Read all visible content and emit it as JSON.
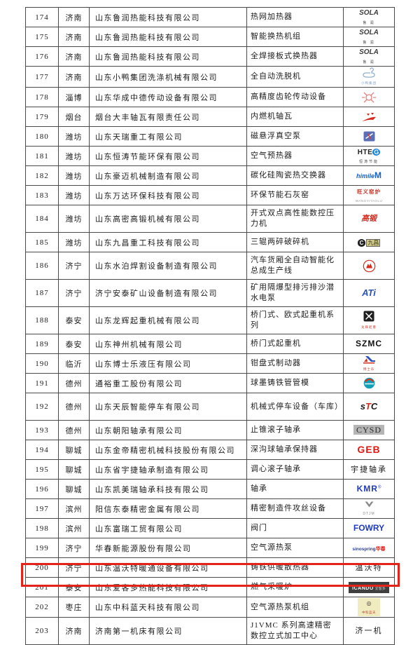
{
  "page": {
    "background": "#ffffff"
  },
  "table": {
    "highlight_color": "#e3231a",
    "highlighted_row_no": "200",
    "rows": [
      {
        "no": "174",
        "city": "济南",
        "company": "山东鲁润热能科技有限公司",
        "product": "热网加热器",
        "h": 1,
        "highlight": false,
        "logo": {
          "lines": [
            [
              {
                "t": "SOLA",
                "c": "sola"
              }
            ],
            [
              {
                "t": "鲁 润",
                "c": "subdark"
              }
            ]
          ]
        }
      },
      {
        "no": "175",
        "city": "济南",
        "company": "山东鲁润热能科技有限公司",
        "product": "智能换热机组",
        "h": 1,
        "highlight": false,
        "logo": {
          "lines": [
            [
              {
                "t": "SOLA",
                "c": "sola"
              }
            ],
            [
              {
                "t": "鲁 润",
                "c": "subdark"
              }
            ]
          ]
        }
      },
      {
        "no": "176",
        "city": "济南",
        "company": "山东鲁润热能科技有限公司",
        "product": "全焊接板式换热器",
        "h": 1,
        "highlight": false,
        "logo": {
          "lines": [
            [
              {
                "t": "SOLA",
                "c": "sola"
              }
            ],
            [
              {
                "t": "鲁 润",
                "c": "subdark"
              }
            ]
          ]
        }
      },
      {
        "no": "177",
        "city": "济南",
        "company": "山东小鸭集团洗涤机械有限公司",
        "product": "全自动洗脱机",
        "h": 1,
        "highlight": false,
        "logo": {
          "icon": "duck-icon",
          "lines": [
            [
              {
                "t": "小鸭集团",
                "c": "subblue"
              }
            ]
          ]
        }
      },
      {
        "no": "178",
        "city": "淄博",
        "company": "山东华成中德传动设备有限公司",
        "product": "高精度齿轮传动设备",
        "h": 1,
        "highlight": false,
        "logo": {
          "icon": "flower-emblem-icon",
          "lines": []
        }
      },
      {
        "no": "179",
        "city": "烟台",
        "company": "烟台大丰轴瓦有限责任公司",
        "product": "内燃机轴瓦",
        "h": 1,
        "highlight": false,
        "logo": {
          "icon": "red-swoosh-icon",
          "lines": []
        }
      },
      {
        "no": "180",
        "city": "潍坊",
        "company": "山东天瑞重工有限公司",
        "product": "磁悬浮真空泵",
        "h": 1,
        "highlight": false,
        "logo": {
          "icon": "blue-square-icon",
          "lines": []
        }
      },
      {
        "no": "181",
        "city": "潍坊",
        "company": "山东恒涛节能环保有限公司",
        "product": "空气预热器",
        "h": 1,
        "highlight": false,
        "logo": {
          "lines": [
            [
              {
                "t": "HTE",
                "c": "hteg-text"
              },
              {
                "t": "G",
                "c": "hteg-g"
              }
            ],
            [
              {
                "t": "恒涛节能",
                "c": "subdark"
              }
            ]
          ]
        }
      },
      {
        "no": "182",
        "city": "潍坊",
        "company": "山东豪迈机械制造有限公司",
        "product": "碳化硅陶瓷热交换器",
        "h": 1,
        "highlight": false,
        "logo": {
          "lines": [
            [
              {
                "t": "himile",
                "c": "himile"
              },
              {
                "t": "M",
                "c": "himile-m"
              }
            ]
          ]
        }
      },
      {
        "no": "183",
        "city": "潍坊",
        "company": "山东万达环保科技有限公司",
        "product": "环保节能石灰窑",
        "h": 1,
        "highlight": false,
        "logo": {
          "lines": [
            [
              {
                "t": "旺义窑炉",
                "c": "wangyi"
              }
            ],
            [
              {
                "t": "WANGYIYAOLU",
                "c": "subgray"
              }
            ]
          ]
        }
      },
      {
        "no": "184",
        "city": "潍坊",
        "company": "山东高密高锻机械有限公司",
        "product": "开式双点高性能数控压力机",
        "h": 2,
        "highlight": false,
        "logo": {
          "lines": [
            [
              {
                "t": "高锻",
                "c": "gaoduan"
              }
            ]
          ]
        }
      },
      {
        "no": "185",
        "city": "潍坊",
        "company": "山东九昌重工科技有限公司",
        "product": "三辊两碎破碎机",
        "h": 1,
        "highlight": false,
        "logo": {
          "lines": [
            [
              {
                "t": "C",
                "c": "jc-c"
              },
              {
                "t": "九昌",
                "c": "jc-box"
              }
            ]
          ]
        }
      },
      {
        "no": "186",
        "city": "济宁",
        "company": "山东水泊焊割设备制造有限公司",
        "product": "汽车货厢全自动智能化总成生产线",
        "h": 2,
        "highlight": false,
        "logo": {
          "icon": "red-ring-mountain-icon",
          "lines": []
        }
      },
      {
        "no": "187",
        "city": "济宁",
        "company": "济宁安泰矿山设备制造有限公司",
        "product": "矿用隔爆型排污排沙潜水电泵",
        "h": 2,
        "highlight": false,
        "logo": {
          "lines": [
            [
              {
                "t": "ATi",
                "c": "ati"
              }
            ]
          ]
        }
      },
      {
        "no": "188",
        "city": "泰安",
        "company": "山东龙辉起重机械有限公司",
        "product": "桥门式、欧式起重机系列",
        "h": 2,
        "highlight": false,
        "logo": {
          "icon": "black-square-cross-icon",
          "lines": [
            [
              {
                "t": "龙辉起重",
                "c": "subred"
              }
            ]
          ]
        }
      },
      {
        "no": "189",
        "city": "泰安",
        "company": "山东神州机械有限公司",
        "product": "桥门式起重机",
        "h": 1,
        "highlight": false,
        "logo": {
          "lines": [
            [
              {
                "t": "SZMC",
                "c": "szmc"
              }
            ]
          ]
        }
      },
      {
        "no": "190",
        "city": "临沂",
        "company": "山东博士乐液压有限公司",
        "product": "钳盘式制动器",
        "h": 1,
        "highlight": false,
        "logo": {
          "icon": "boshile-swoosh-icon",
          "lines": [
            [
              {
                "t": "博士乐",
                "c": "subred"
              }
            ]
          ]
        }
      },
      {
        "no": "191",
        "city": "德州",
        "company": "通裕重工股份有限公司",
        "product": "球墨铸铁管管模",
        "h": 1,
        "highlight": false,
        "logo": {
          "icon": "tongyu-globe-icon",
          "lines": []
        }
      },
      {
        "no": "192",
        "city": "德州",
        "company": "山东天辰智能停车有限公司",
        "product": "机械式停车设备（车库）",
        "h": 2,
        "highlight": false,
        "logo": {
          "lines": [
            [
              {
                "t": "s",
                "c": "stc-s"
              },
              {
                "t": "T",
                "c": "stc-t"
              },
              {
                "t": "C",
                "c": "stc-s"
              }
            ]
          ]
        }
      },
      {
        "no": "193",
        "city": "德州",
        "company": "山东朝阳轴承有限公司",
        "product": "止锥滚子轴承",
        "h": 1,
        "highlight": false,
        "logo": {
          "lines": [
            [
              {
                "t": "CYSD",
                "c": "cysd"
              }
            ]
          ]
        }
      },
      {
        "no": "194",
        "city": "聊城",
        "company": "山东金帝精密机械科技股份有限公司",
        "product": "深沟球轴承保持器",
        "h": 1,
        "highlight": false,
        "logo": {
          "lines": [
            [
              {
                "t": "GEB",
                "c": "geb"
              }
            ]
          ]
        }
      },
      {
        "no": "195",
        "city": "聊城",
        "company": "山东省宇捷轴承制造有限公司",
        "product": "调心滚子轴承",
        "h": 1,
        "highlight": false,
        "logo": {
          "lines": [
            [
              {
                "t": "宇捷轴承",
                "c": "cjk"
              }
            ]
          ]
        }
      },
      {
        "no": "196",
        "city": "聊城",
        "company": "山东凯美瑞轴承科技有限公司",
        "product": "轴承",
        "h": 1,
        "highlight": false,
        "logo": {
          "lines": [
            [
              {
                "t": "KMR",
                "c": "kmr"
              },
              {
                "t": "®",
                "c": "kmr-r"
              }
            ]
          ]
        }
      },
      {
        "no": "197",
        "city": "滨州",
        "company": "阳信东泰精密金属有限公司",
        "product": "精密制造件攻丝设备",
        "h": 1,
        "highlight": false,
        "logo": {
          "icon": "dtjm-triangle-icon",
          "lines": [
            [
              {
                "t": "DTJM",
                "c": "subgray2"
              }
            ]
          ]
        }
      },
      {
        "no": "198",
        "city": "滨州",
        "company": "山东富瑞工贸有限公司",
        "product": "阀门",
        "h": 1,
        "highlight": false,
        "logo": {
          "lines": [
            [
              {
                "t": "FOWRY",
                "c": "fowry"
              }
            ]
          ]
        }
      },
      {
        "no": "199",
        "city": "济宁",
        "company": "华春新能源股份有限公司",
        "product": "空气源热泵",
        "h": 1,
        "highlight": false,
        "logo": {
          "lines": [
            [
              {
                "t": "sino",
                "c": "ss-blue"
              },
              {
                "t": "spring",
                "c": "ss-blue"
              },
              {
                "t": "华春",
                "c": "ss-red"
              }
            ]
          ]
        }
      },
      {
        "no": "200",
        "city": "济宁",
        "company": "山东温沃特暖通设备有限公司",
        "product": "铸铁供暖散热器",
        "h": 1,
        "highlight": true,
        "logo": {
          "lines": [
            [
              {
                "t": "温沃特",
                "c": "cjk"
              }
            ]
          ]
        }
      },
      {
        "no": "201",
        "city": "泰安",
        "company": "山东爱客多热能科技有限公司",
        "product": "燃气采暖炉",
        "h": 1,
        "highlight": false,
        "logo": {
          "box": "dark",
          "lines": [
            [
              {
                "t": "ICANDO",
                "c": "icando"
              },
              {
                "t": "爱客多",
                "c": "icando-sub"
              }
            ]
          ]
        }
      },
      {
        "no": "202",
        "city": "枣庄",
        "company": "山东中科蓝天科技有限公司",
        "product": "空气源热泵机组",
        "h": 1,
        "highlight": false,
        "logo": {
          "box": "yellow",
          "lines": [
            [
              {
                "t": "◎",
                "c": "zk-mark"
              }
            ],
            [
              {
                "t": "中科蓝天",
                "c": "zk-sub"
              }
            ]
          ]
        }
      },
      {
        "no": "203",
        "city": "济南",
        "company": "济南第一机床有限公司",
        "product": "J1VMC 系列高速精密数控立式加工中心",
        "h": 2,
        "highlight": false,
        "logo": {
          "lines": [
            [
              {
                "t": "济一机",
                "c": "cjk"
              }
            ]
          ]
        }
      }
    ]
  }
}
